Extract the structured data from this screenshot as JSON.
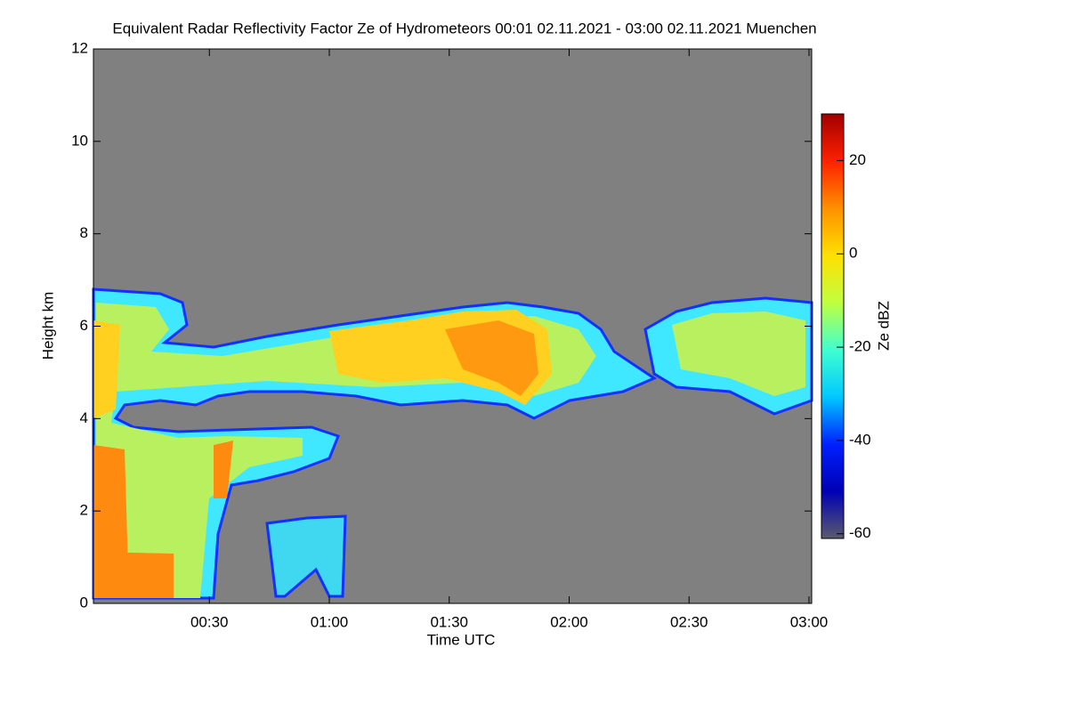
{
  "chart_data": {
    "type": "heatmap",
    "title": "Equivalent Radar Reflectivity Factor Ze of Hydrometeors   00:01 02.11.2021 - 03:00 02.11.2021 Muenchen",
    "x_label": "Time UTC",
    "y_label": "Height km",
    "xlim": [
      1,
      180
    ],
    "xticks": [
      {
        "value": 30,
        "label": "00:30"
      },
      {
        "value": 60,
        "label": "01:00"
      },
      {
        "value": 90,
        "label": "01:30"
      },
      {
        "value": 120,
        "label": "02:00"
      },
      {
        "value": 150,
        "label": "02:30"
      },
      {
        "value": 180,
        "label": "03:00"
      }
    ],
    "ylim": [
      0,
      12
    ],
    "yticks": [
      0,
      2,
      4,
      6,
      8,
      10,
      12
    ],
    "background": "#808080",
    "colorbar": {
      "label": "Ze dBZ",
      "lim": [
        -61,
        30
      ],
      "ticks": [
        -60,
        -40,
        -20,
        0,
        20
      ],
      "colors": [
        "#5a5a6e",
        "#0000b4",
        "#0020ff",
        "#00c8ff",
        "#40ffd0",
        "#c0ff40",
        "#ffe000",
        "#ff9000",
        "#ff2000",
        "#a00000"
      ]
    }
  }
}
